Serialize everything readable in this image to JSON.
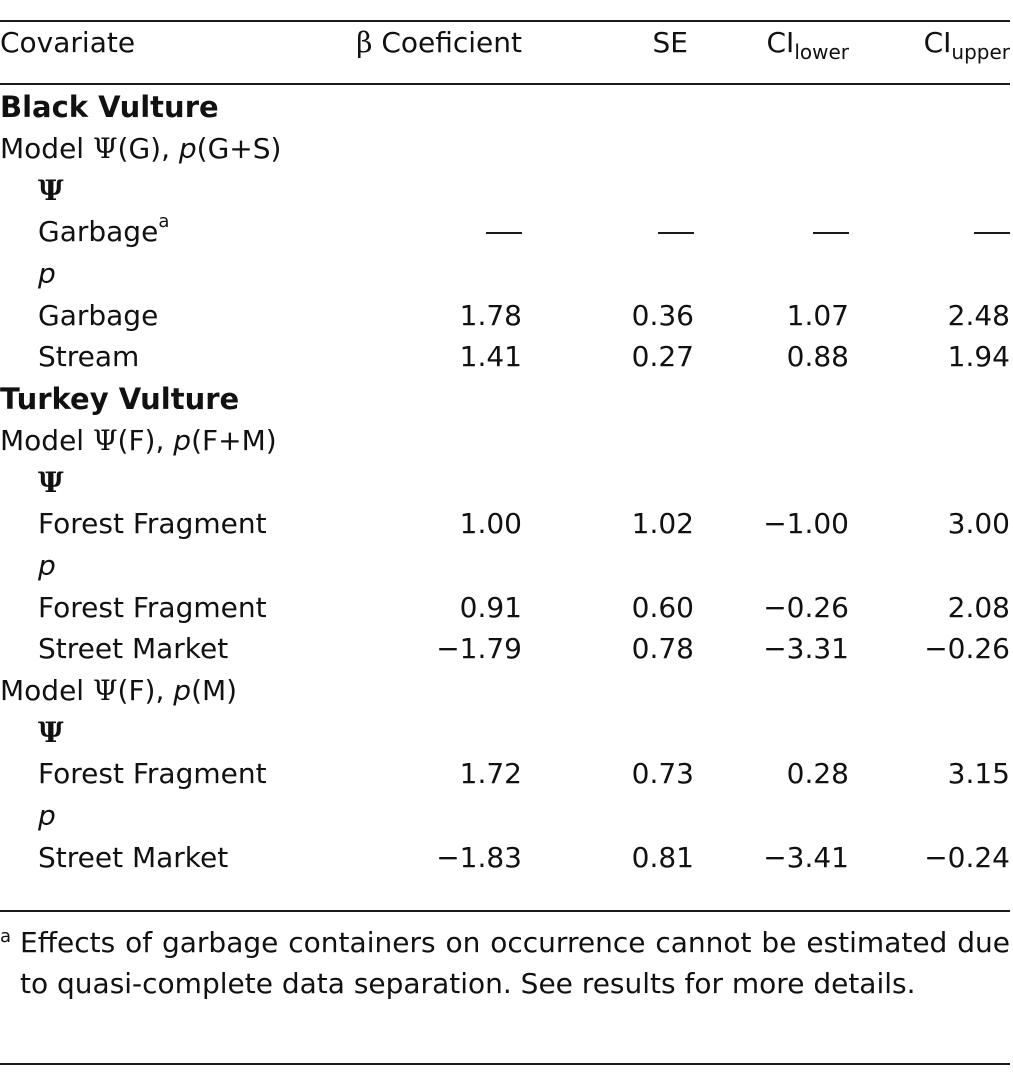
{
  "header": {
    "covariate": "Covariate",
    "beta_symbol": "β",
    "beta_label": "Coeficient",
    "se": "SE",
    "ci_lower_main": "CI",
    "ci_lower_sub": "lower",
    "ci_upper_main": "CI",
    "ci_upper_sub": "upper"
  },
  "sections": {
    "black": {
      "title": "Black Vulture",
      "model": {
        "prefix": "Model ",
        "psi": "Ψ",
        "mid": "(G), ",
        "p": "p",
        "suffix": "(G+S)"
      },
      "psi_label": "Ψ",
      "garbage_psi": {
        "label": "Garbage",
        "note": "a",
        "b": "—",
        "se": "—",
        "lo": "—",
        "up": "—"
      },
      "p_label": "p",
      "rows": [
        {
          "label": "Garbage",
          "b": "1.78",
          "se": "0.36",
          "lo": "1.07",
          "up": "2.48"
        },
        {
          "label": "Stream",
          "b": "1.41",
          "se": "0.27",
          "lo": "0.88",
          "up": "1.94"
        }
      ]
    },
    "turkey": {
      "title": "Turkey Vulture",
      "model1": {
        "prefix": "Model ",
        "psi": "Ψ",
        "mid": "(F), ",
        "p": "p",
        "suffix": "(F+M)"
      },
      "psi_label": "Ψ",
      "psi_row1": {
        "label": "Forest Fragment",
        "b": "1.00",
        "se": "1.02",
        "lo": "−1.00",
        "up": "3.00"
      },
      "p_label": "p",
      "p_rows1": [
        {
          "label": "Forest Fragment",
          "b": "0.91",
          "se": "0.60",
          "lo": "−0.26",
          "up": "2.08"
        },
        {
          "label": "Street Market",
          "b": "−1.79",
          "se": "0.78",
          "lo": "−3.31",
          "up": "−0.26"
        }
      ],
      "model2": {
        "prefix": "Model ",
        "psi": "Ψ",
        "mid": "(F), ",
        "p": "p",
        "suffix": "(M)"
      },
      "psi_label2": "Ψ",
      "psi_row2": {
        "label": "Forest Fragment",
        "b": "1.72",
        "se": "0.73",
        "lo": "0.28",
        "up": "3.15"
      },
      "p_label2": "p",
      "p_row2": {
        "label": "Street Market",
        "b": "−1.83",
        "se": "0.81",
        "lo": "−3.41",
        "up": "−0.24"
      }
    }
  },
  "footnote": {
    "mark": "a",
    "text": "Effects of garbage containers on occurrence cannot be estimated due to quasi-complete data separation. See results for more details."
  }
}
